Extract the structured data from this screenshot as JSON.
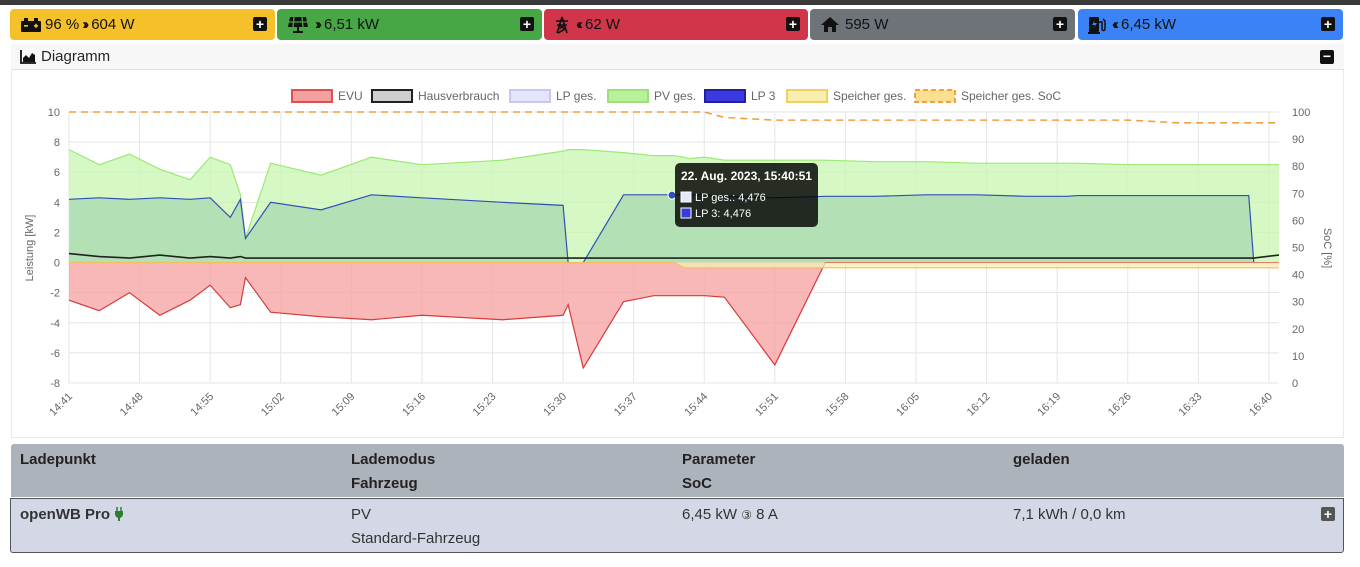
{
  "status_bar": {
    "battery": {
      "soc": "96 %",
      "power": "604 W",
      "color": "#f5c12b"
    },
    "pv": {
      "power": "6,51 kW",
      "color": "#48a745"
    },
    "grid": {
      "power": "62 W",
      "color": "#d0354a"
    },
    "house": {
      "power": "595 W",
      "color": "#6e737a"
    },
    "charging": {
      "power": "6,45 kW",
      "color": "#3a82f5"
    }
  },
  "diagram": {
    "title": "Diagramm"
  },
  "chart_data": {
    "type": "area",
    "legend": [
      "EVU",
      "Hausverbrauch",
      "LP ges.",
      "PV ges.",
      "LP 3",
      "Speicher ges.",
      "Speicher ges. SoC"
    ],
    "x_ticks": [
      "14:41",
      "14:48",
      "14:55",
      "15:02",
      "15:09",
      "15:16",
      "15:23",
      "15:30",
      "15:37",
      "15:44",
      "15:51",
      "15:58",
      "16:05",
      "16:12",
      "16:19",
      "16:26",
      "16:33",
      "16:40"
    ],
    "ylabel": "Leistung [kW]",
    "y2label": "SoC [%]",
    "ylim": [
      -8,
      10
    ],
    "y2lim": [
      0,
      100
    ],
    "y_ticks": [
      "10",
      "8",
      "6",
      "4",
      "2",
      "0",
      "-2",
      "-4",
      "-6",
      "-8"
    ],
    "y2_ticks": [
      "100",
      "90",
      "80",
      "70",
      "60",
      "50",
      "40",
      "30",
      "20",
      "10",
      "0"
    ],
    "x_minutes": [
      0,
      3,
      6,
      9,
      12,
      14,
      16,
      17,
      17.5,
      20,
      25,
      30,
      35,
      43,
      49,
      49.5,
      51,
      55,
      58,
      60,
      61,
      61.5,
      63,
      65,
      70,
      75,
      80,
      85,
      90,
      95,
      99,
      100,
      105,
      110,
      115,
      117,
      117.5,
      120
    ],
    "series": [
      {
        "name": "PV ges.",
        "color": "#b7f29b",
        "values": [
          7.5,
          6.5,
          7.2,
          6.2,
          5.5,
          7,
          6.5,
          4.5,
          1.6,
          6.6,
          5.8,
          7,
          6.5,
          6.8,
          7.4,
          7.5,
          7.5,
          7.3,
          7.1,
          7.1,
          7,
          6.9,
          7,
          6.8,
          6.8,
          6.8,
          6.7,
          6.7,
          6.6,
          6.6,
          6.6,
          6.6,
          6.5,
          6.5,
          6.5,
          6.5,
          6.5,
          6.5
        ]
      },
      {
        "name": "LP 3",
        "color": "#2d3fd6",
        "values": [
          4.2,
          4.3,
          4.2,
          4.3,
          4.2,
          4.3,
          3,
          4.2,
          1.6,
          4,
          3.5,
          4.5,
          4.3,
          4,
          3.8,
          0,
          0,
          4.5,
          4.5,
          4.5,
          4.5,
          4.5,
          4.5,
          4.4,
          4.3,
          4.4,
          4.4,
          4.5,
          4.5,
          4.4,
          4.4,
          4.45,
          4.45,
          4.45,
          4.45,
          4.45,
          0,
          0
        ]
      },
      {
        "name": "EVU",
        "color": "#f08080",
        "values": [
          -2.5,
          -3.2,
          -2,
          -3.5,
          -2.5,
          -1.5,
          -3,
          -2.8,
          -1,
          -3.3,
          -3.6,
          -3.8,
          -3.5,
          -3.8,
          -3.5,
          -2.8,
          -7,
          -2.6,
          -2.2,
          -2.2,
          -2.2,
          -2.2,
          -2.2,
          -2.3,
          -6.8,
          0,
          0,
          0,
          0,
          0,
          0,
          0,
          0,
          0,
          0,
          0,
          0,
          0
        ]
      },
      {
        "name": "Hausverbrauch",
        "color": "#222222",
        "values": [
          0.6,
          0.4,
          0.3,
          0.5,
          0.3,
          0.4,
          0.3,
          0.4,
          0.3,
          0.3,
          0.3,
          0.3,
          0.3,
          0.3,
          0.3,
          0.3,
          0.3,
          0.3,
          0.3,
          0.3,
          0.3,
          0.3,
          0.3,
          0.3,
          0.3,
          0.3,
          0.3,
          0.3,
          0.3,
          0.3,
          0.3,
          0.3,
          0.3,
          0.3,
          0.3,
          0.3,
          0.3,
          0.5
        ]
      },
      {
        "name": "Speicher ges. SoC",
        "color": "#f0a040",
        "values": [
          100,
          100,
          100,
          100,
          100,
          100,
          100,
          100,
          100,
          100,
          100,
          100,
          100,
          100,
          100,
          100,
          100,
          100,
          100,
          100,
          100,
          100,
          100,
          98,
          97,
          97,
          97,
          97,
          97,
          97,
          97,
          97,
          97,
          96,
          96,
          96,
          96,
          96
        ]
      }
    ],
    "tooltip": {
      "title": "22. Aug. 2023, 15:40:51",
      "line1": "LP ges.: 4,476",
      "line2": "LP 3: 4,476"
    }
  },
  "table": {
    "headers": [
      "Ladepunkt",
      "Lademodus",
      "Parameter",
      "geladen"
    ],
    "subheaders": [
      "Fahrzeug",
      "SoC"
    ],
    "row": {
      "name": "openWB Pro",
      "mode": "PV",
      "vehicle": "Standard-Fahrzeug",
      "param": "6,45 kW",
      "amps": "8 A",
      "charged": "7,1 kWh / 0,0 km"
    }
  }
}
